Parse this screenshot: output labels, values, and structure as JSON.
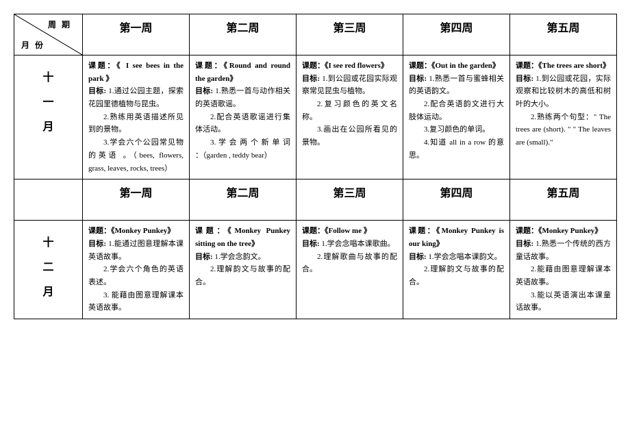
{
  "header": {
    "corner_top": "周期",
    "corner_bottom": "月份",
    "weeks": [
      "第一周",
      "第二周",
      "第三周",
      "第四周",
      "第五周"
    ]
  },
  "months": [
    {
      "label_chars": [
        "十",
        "一",
        "月"
      ],
      "cells": [
        {
          "topic_label": "课题：",
          "topic": "《 I see bees in the park 》",
          "goal_label": "目标: ",
          "goals": [
            "1.通过公园主题，探索花园里德植物与昆虫。",
            "2.熟练用英语描述所见到的景物。",
            "3.学会六个公园常见物的英语 。（bees, flowers, grass, leaves, rocks, trees）"
          ]
        },
        {
          "topic_label": "课题：",
          "topic": "《Round and round the garden》",
          "goal_label": "目标: ",
          "goals": [
            "1.熟悉一首与动作相关的英语歌谣。",
            "2.配合英语歌谣进行集体活动。",
            "3. 学 会 两 个 新 单 词 ：（garden , teddy bear）"
          ]
        },
        {
          "topic_label": "课题：",
          "topic": "《I see red flowers》",
          "goal_label": "目标: ",
          "goals": [
            "1.到公园或花园实际观察常见昆虫与植物。",
            "2.复习颜色的英文名称。",
            "3.画出在公园所看见的景物。"
          ]
        },
        {
          "topic_label": "课题：",
          "topic": "《Out in the garden》",
          "goal_label": "目标: ",
          "goals": [
            "1.熟悉一首与蜜蜂相关的英语韵文。",
            "2.配合英语韵文进行大肢体运动。",
            "3.复习颜色的单词。",
            "4.知道 all in a row 的意思。"
          ]
        },
        {
          "topic_label": "课题：",
          "topic": "《The trees are short》",
          "goal_label": "目标: ",
          "goals": [
            "1.到公园或花园，实际观察和比较树木的高低和树叶的大小。",
            "2.熟练两个句型：\" The trees are (short). \" \" The leaves are (small).\""
          ]
        }
      ]
    },
    {
      "label_chars": [
        "十",
        "二",
        "月"
      ],
      "cells": [
        {
          "topic_label": "课题：",
          "topic": "《Monkey Punkey》",
          "goal_label": "目标: ",
          "goals": [
            "1.能通过图意理解本课英语故事。",
            "2.学会六个角色的英语表述。",
            "3. 能藉由图意理解课本英语故事。"
          ]
        },
        {
          "topic_label": "课题：",
          "topic": "《Monkey Punkey sitting on the tree》",
          "goal_label": "目标: ",
          "goals": [
            "1.学会念韵文。",
            "2.理解韵文与故事的配合。"
          ]
        },
        {
          "topic_label": "课题：",
          "topic": "《Follow me 》",
          "goal_label": "目标: ",
          "goals": [
            "1.学会念唱本课歌曲。",
            "2.理解歌曲与故事的配合。"
          ]
        },
        {
          "topic_label": "课题：",
          "topic": "《Monkey Punkey is our king》",
          "goal_label": "目标: ",
          "goals": [
            "1.学会念唱本课韵文。",
            "2.理解韵文与故事的配合。"
          ]
        },
        {
          "topic_label": "课题：",
          "topic": "《Monkey Punkey》",
          "goal_label": "目标: ",
          "goals": [
            "1.熟悉一个传统的西方童话故事。",
            "2.能藉由图意理解课本英语故事。",
            "3.能以英语演出本课童话故事。"
          ]
        }
      ]
    }
  ]
}
